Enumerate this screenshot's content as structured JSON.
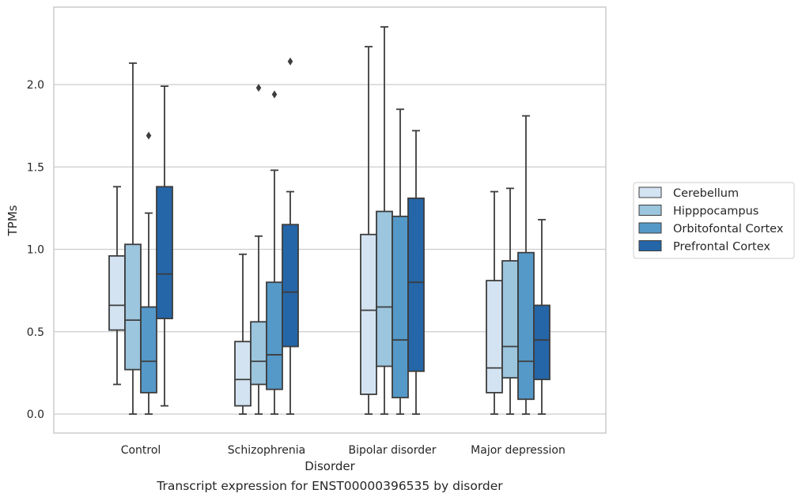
{
  "caption": "Transcript expression for ENST00000396535 by disorder",
  "chart_data": {
    "type": "box",
    "title": "",
    "xlabel": "Disorder",
    "ylabel": "TPMs",
    "ylim": [
      -0.11,
      2.48
    ],
    "yticks": [
      0.0,
      0.5,
      1.0,
      1.5,
      2.0
    ],
    "ytick_labels": [
      "0.0",
      "0.5",
      "1.0",
      "1.5",
      "2.0"
    ],
    "grid": "horizontal",
    "legend_position": "right",
    "categories": [
      "Control",
      "Schizophrenia",
      "Bipolar disorder",
      "Major depression"
    ],
    "series": [
      {
        "name": "Cerebellum",
        "color": "#d3e3f2",
        "boxes": [
          {
            "whislo": 0.18,
            "q1": 0.51,
            "med": 0.66,
            "q3": 0.96,
            "whishi": 1.38,
            "fliers": []
          },
          {
            "whislo": 0.0,
            "q1": 0.05,
            "med": 0.21,
            "q3": 0.44,
            "whishi": 0.97,
            "fliers": []
          },
          {
            "whislo": 0.0,
            "q1": 0.12,
            "med": 0.63,
            "q3": 1.09,
            "whishi": 2.23,
            "fliers": []
          },
          {
            "whislo": 0.0,
            "q1": 0.13,
            "med": 0.28,
            "q3": 0.81,
            "whishi": 1.35,
            "fliers": []
          }
        ]
      },
      {
        "name": "Hipppocampus",
        "color": "#9cc5de",
        "boxes": [
          {
            "whislo": 0.0,
            "q1": 0.27,
            "med": 0.57,
            "q3": 1.03,
            "whishi": 2.13,
            "fliers": []
          },
          {
            "whislo": 0.0,
            "q1": 0.18,
            "med": 0.32,
            "q3": 0.56,
            "whishi": 1.08,
            "fliers": [
              1.98
            ]
          },
          {
            "whislo": 0.0,
            "q1": 0.29,
            "med": 0.65,
            "q3": 1.23,
            "whishi": 2.35,
            "fliers": []
          },
          {
            "whislo": 0.0,
            "q1": 0.22,
            "med": 0.41,
            "q3": 0.93,
            "whishi": 1.37,
            "fliers": []
          }
        ]
      },
      {
        "name": "Orbitofontal Cortex",
        "color": "#5599c8",
        "boxes": [
          {
            "whislo": 0.0,
            "q1": 0.13,
            "med": 0.32,
            "q3": 0.65,
            "whishi": 1.22,
            "fliers": [
              1.69
            ]
          },
          {
            "whislo": 0.0,
            "q1": 0.15,
            "med": 0.36,
            "q3": 0.8,
            "whishi": 1.48,
            "fliers": [
              1.94
            ]
          },
          {
            "whislo": 0.0,
            "q1": 0.1,
            "med": 0.45,
            "q3": 1.2,
            "whishi": 1.85,
            "fliers": []
          },
          {
            "whislo": 0.0,
            "q1": 0.09,
            "med": 0.32,
            "q3": 0.98,
            "whishi": 1.81,
            "fliers": []
          }
        ]
      },
      {
        "name": "Prefrontal Cortex",
        "color": "#2466a8",
        "boxes": [
          {
            "whislo": 0.05,
            "q1": 0.58,
            "med": 0.85,
            "q3": 1.38,
            "whishi": 1.99,
            "fliers": []
          },
          {
            "whislo": 0.0,
            "q1": 0.41,
            "med": 0.74,
            "q3": 1.15,
            "whishi": 1.35,
            "fliers": [
              2.14
            ]
          },
          {
            "whislo": 0.0,
            "q1": 0.26,
            "med": 0.8,
            "q3": 1.31,
            "whishi": 1.72,
            "fliers": []
          },
          {
            "whislo": 0.0,
            "q1": 0.21,
            "med": 0.45,
            "q3": 0.66,
            "whishi": 1.18,
            "fliers": []
          }
        ]
      }
    ]
  }
}
